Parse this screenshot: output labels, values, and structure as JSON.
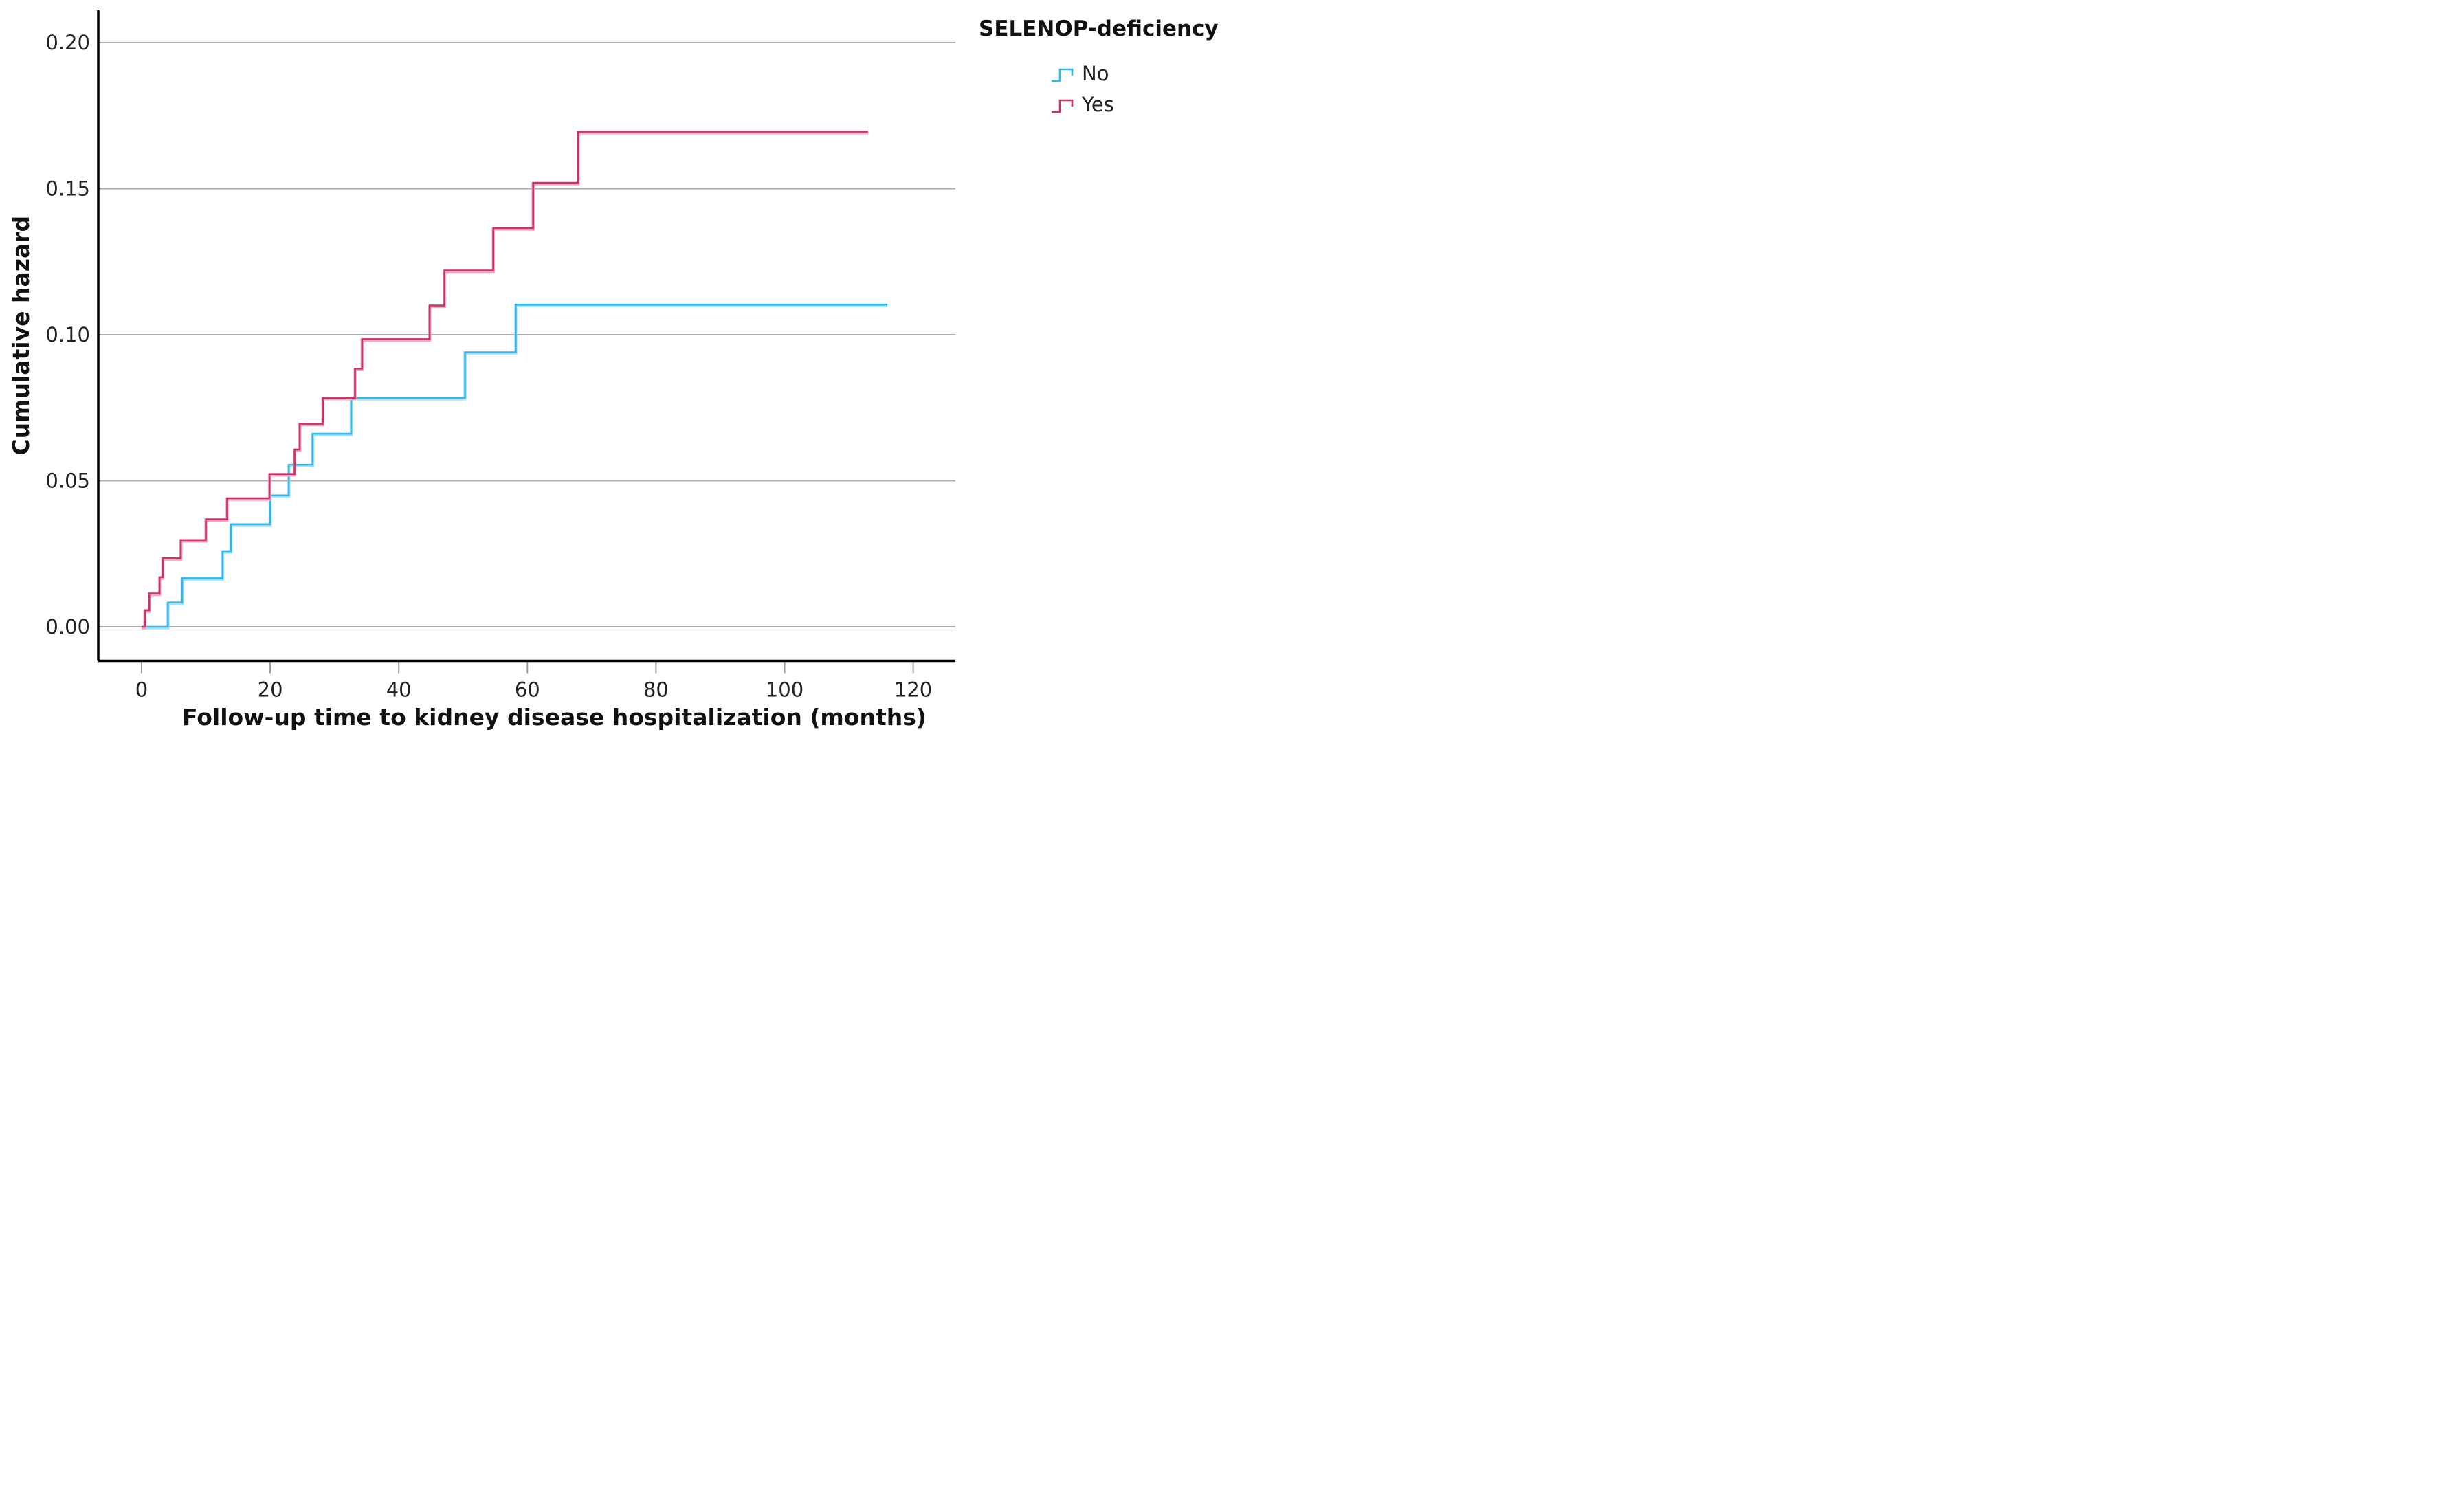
{
  "chart_data": {
    "type": "line",
    "subtype": "step-cumulative-hazard",
    "title": "",
    "xlabel": "Follow-up time to kidney disease hospitalization (months)",
    "ylabel": "Cumulative hazard",
    "xlim": [
      -7,
      126
    ],
    "ylim": [
      -0.0116,
      0.211
    ],
    "x_ticks": [
      0,
      20,
      40,
      60,
      80,
      100,
      120
    ],
    "x_tick_labels": [
      "0",
      "20",
      "40",
      "60",
      "80",
      "100",
      "120"
    ],
    "y_ticks": [
      0.0,
      0.05,
      0.1,
      0.15,
      0.2
    ],
    "y_tick_labels": [
      "0.00",
      "0.05",
      "0.10",
      "0.15",
      "0.20"
    ],
    "grid": true,
    "grid_color": "#ababab",
    "spine_color": "#000000",
    "tick_mark_color": "#9b9b9b",
    "legend_position": "top-right-outside",
    "series": [
      {
        "name": "No",
        "color": "#2EB8EE",
        "halo_color": "#A9E2F8",
        "end_time": 116,
        "steps": [
          [
            4.1,
            0.0083
          ],
          [
            6.3,
            0.0166
          ],
          [
            12.6,
            0.0259
          ],
          [
            13.9,
            0.0351
          ],
          [
            20.0,
            0.045
          ],
          [
            22.9,
            0.0555
          ],
          [
            26.6,
            0.0661
          ],
          [
            32.6,
            0.0784
          ],
          [
            50.3,
            0.094
          ],
          [
            58.2,
            0.1103
          ]
        ]
      },
      {
        "name": "Yes",
        "color": "#CE3169",
        "halo_color": "#F2ABC4",
        "end_time": 113,
        "steps": [
          [
            0.5,
            0.0057
          ],
          [
            1.2,
            0.0114
          ],
          [
            2.8,
            0.017
          ],
          [
            3.3,
            0.0235
          ],
          [
            6.1,
            0.0297
          ],
          [
            10.0,
            0.0368
          ],
          [
            13.3,
            0.044
          ],
          [
            19.9,
            0.0523
          ],
          [
            23.8,
            0.0607
          ],
          [
            24.6,
            0.0695
          ],
          [
            28.2,
            0.0784
          ],
          [
            33.2,
            0.0884
          ],
          [
            34.3,
            0.0985
          ],
          [
            44.8,
            0.11
          ],
          [
            47.1,
            0.122
          ],
          [
            54.7,
            0.1365
          ],
          [
            60.9,
            0.152
          ],
          [
            67.9,
            0.1695
          ]
        ]
      }
    ]
  },
  "legend": {
    "title": "SELENOP-deficiency",
    "items": [
      {
        "label": "No",
        "series_index": 0
      },
      {
        "label": "Yes",
        "series_index": 1
      }
    ]
  }
}
